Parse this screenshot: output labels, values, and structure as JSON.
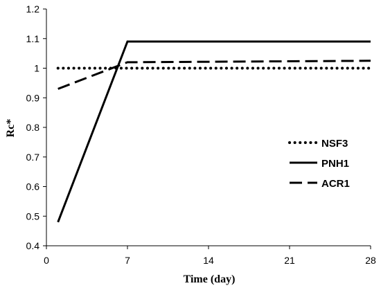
{
  "chart_data": {
    "type": "line",
    "xlabel": "Time (day)",
    "ylabel": "Rc*",
    "xlim": [
      0,
      28
    ],
    "ylim": [
      0.4,
      1.2
    ],
    "xticks": [
      "0",
      "7",
      "14",
      "21",
      "28"
    ],
    "yticks": [
      "0.4",
      "0.5",
      "0.6",
      "0.7",
      "0.8",
      "0.9",
      "1",
      "1.1",
      "1.2"
    ],
    "grid": false,
    "legend_position": "right",
    "series": [
      {
        "name": "NSF3",
        "style": "dotted",
        "x": [
          1,
          7,
          28
        ],
        "y": [
          1.0,
          1.0,
          1.0
        ]
      },
      {
        "name": "PNH1",
        "style": "solid",
        "x": [
          1,
          7,
          28
        ],
        "y": [
          0.48,
          1.09,
          1.09
        ]
      },
      {
        "name": "ACR1",
        "style": "dashed",
        "x": [
          1,
          7,
          28
        ],
        "y": [
          0.93,
          1.02,
          1.025
        ]
      }
    ],
    "line_color": "#000000"
  }
}
